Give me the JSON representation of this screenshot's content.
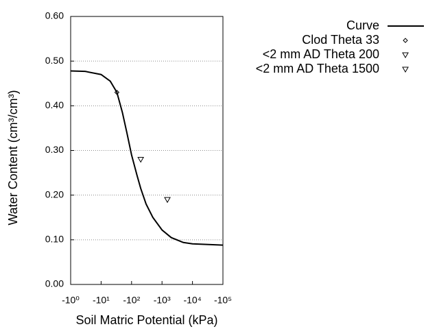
{
  "chart_data": {
    "type": "line",
    "xlabel": "Soil Matric Potential (kPa)",
    "ylabel": "Water Content (cm³/cm³)",
    "xscale": "log",
    "xlim": [
      -1,
      -100000
    ],
    "xticks": [
      {
        "value": -1,
        "label": "-10⁰"
      },
      {
        "value": -10,
        "label": "-10¹"
      },
      {
        "value": -100,
        "label": "-10²"
      },
      {
        "value": -1000,
        "label": "-10³"
      },
      {
        "value": -10000,
        "label": "-10⁴"
      },
      {
        "value": -100000,
        "label": "-10⁵"
      }
    ],
    "ylim": [
      0,
      0.6
    ],
    "yticks": [
      {
        "value": 0,
        "label": "0.00"
      },
      {
        "value": 0.1,
        "label": "0.10"
      },
      {
        "value": 0.2,
        "label": "0.20"
      },
      {
        "value": 0.3,
        "label": "0.30"
      },
      {
        "value": 0.4,
        "label": "0.40"
      },
      {
        "value": 0.5,
        "label": "0.50"
      },
      {
        "value": 0.6,
        "label": "0.60"
      }
    ],
    "grid": true,
    "series": [
      {
        "name": "Curve",
        "color": "#000000",
        "marker": "none",
        "x": [
          -1,
          -3,
          -10,
          -20,
          -33,
          -50,
          -70,
          -100,
          -150,
          -200,
          -300,
          -500,
          -1000,
          -2000,
          -5000,
          -10000,
          -100000
        ],
        "values": [
          0.478,
          0.477,
          0.47,
          0.455,
          0.43,
          0.385,
          0.34,
          0.29,
          0.245,
          0.215,
          0.18,
          0.15,
          0.122,
          0.105,
          0.094,
          0.091,
          0.088
        ]
      },
      {
        "name": "Clod Theta 33",
        "color": "#000000",
        "marker": "diamond",
        "x": [
          -33
        ],
        "values": [
          0.43
        ]
      },
      {
        "name": "<2 mm AD Theta 200",
        "color": "#000000",
        "marker": "triangle-down",
        "x": [
          -200
        ],
        "values": [
          0.28
        ]
      },
      {
        "name": "<2 mm AD Theta 1500",
        "color": "#000000",
        "marker": "triangle-down",
        "x": [
          -1500
        ],
        "values": [
          0.19
        ]
      }
    ]
  }
}
